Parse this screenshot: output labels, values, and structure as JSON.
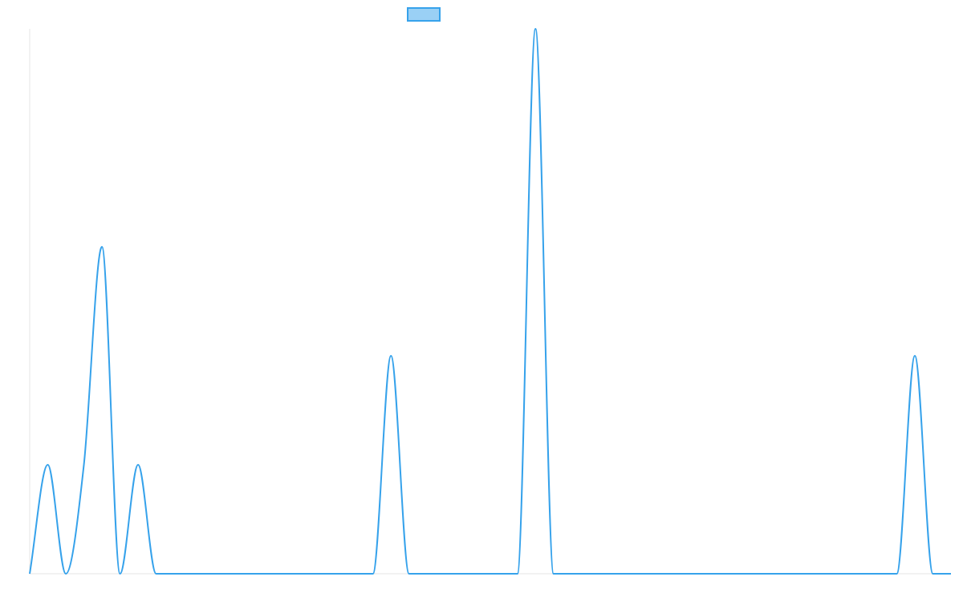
{
  "chart_data": {
    "type": "line",
    "title": "",
    "xlabel": "",
    "ylabel": "",
    "legend": {
      "placement": "top-center",
      "entries": [
        ""
      ]
    },
    "grid": false,
    "x": [
      0,
      1,
      2,
      3,
      4,
      5,
      6,
      7,
      8,
      9,
      10,
      11,
      12,
      13,
      14,
      15,
      16,
      17,
      18,
      19,
      20,
      21,
      22,
      23,
      24,
      25,
      26,
      27,
      28,
      29,
      30,
      31,
      32,
      33,
      34,
      35,
      36,
      37,
      38,
      39,
      40,
      41,
      42,
      43,
      44,
      45,
      46,
      47,
      48,
      49,
      50,
      51
    ],
    "xlim": [
      0,
      51
    ],
    "ylim": [
      0,
      5
    ],
    "series": [
      {
        "name": "",
        "color": "#36a2eb",
        "fill": "#9ad0f5",
        "values": [
          0,
          1,
          0,
          1,
          3,
          0,
          1,
          0,
          0,
          0,
          0,
          0,
          0,
          0,
          0,
          0,
          0,
          0,
          0,
          0,
          2,
          0,
          0,
          0,
          0,
          0,
          0,
          0,
          5,
          0,
          0,
          0,
          0,
          0,
          0,
          0,
          0,
          0,
          0,
          0,
          0,
          0,
          0,
          0,
          0,
          0,
          0,
          0,
          0,
          2,
          0,
          0
        ]
      }
    ]
  }
}
